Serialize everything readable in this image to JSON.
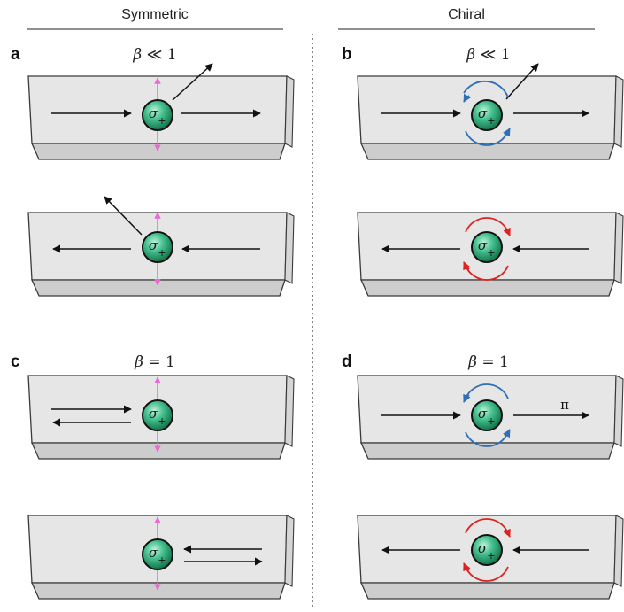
{
  "columns": {
    "left_title": "Symmetric",
    "right_title": "Chiral"
  },
  "panels": {
    "a": {
      "letter": "a",
      "beta_symbol": "β",
      "beta_relation": " ≪ 1"
    },
    "b": {
      "letter": "b",
      "beta_symbol": "β",
      "beta_relation": " ≪ 1"
    },
    "c": {
      "letter": "c",
      "beta_symbol": "β",
      "beta_relation": " = 1"
    },
    "d": {
      "letter": "d",
      "beta_symbol": "β",
      "beta_relation": " = 1"
    }
  },
  "emitter": {
    "symbol": "σ",
    "subscript": "+"
  },
  "phase_label": "π",
  "colors": {
    "waveguide_top": "#e6e6e6",
    "waveguide_front": "#cfcfcf",
    "waveguide_edge": "#3a3a3a",
    "atom_green": "#33b383",
    "arrow_black": "#111111",
    "dipole_pink": "#ee66d8",
    "circulation_blue": "#2e6fb5",
    "circulation_red": "#dd2222",
    "divider": "#333333"
  }
}
